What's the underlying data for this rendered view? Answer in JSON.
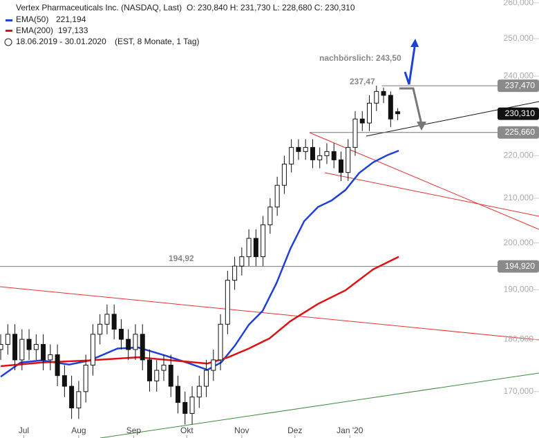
{
  "chart_data": {
    "type": "candlestick",
    "title": "Vertex Pharmaceuticals Inc. (NASDAQ, Last)",
    "quote": "O: 230,840  H: 231,730  L: 228,680  C: 230,310",
    "range_text": "18.06.2019 - 30.01.2020",
    "range_note": "(EST, 8 Monate, 1 Tag)",
    "log_scale": true,
    "ylim": [
      161600,
      260800
    ],
    "xlim": [
      -0.4,
      303.7
    ],
    "yticks": [
      {
        "value": 260000,
        "label": "260,000"
      },
      {
        "value": 250000,
        "label": "250,000"
      },
      {
        "value": 240000,
        "label": "240,000"
      },
      {
        "value": 230000,
        "label": "230,000"
      },
      {
        "value": 220000,
        "label": "220,000"
      },
      {
        "value": 210000,
        "label": "210,000"
      },
      {
        "value": 200000,
        "label": "200,000"
      },
      {
        "value": 190000,
        "label": "190,000"
      },
      {
        "value": 180000,
        "label": "180,000"
      },
      {
        "value": 170000,
        "label": "170,000"
      }
    ],
    "xticks": [
      {
        "value": 13,
        "label": "Jul"
      },
      {
        "value": 44,
        "label": "Aug"
      },
      {
        "value": 75,
        "label": "Sep"
      },
      {
        "value": 105,
        "label": "Okt"
      },
      {
        "value": 136,
        "label": "Nov"
      },
      {
        "value": 166,
        "label": "Dez"
      },
      {
        "value": 197,
        "label": "Jan '20"
      }
    ],
    "candles": {
      "x": [
        0,
        4,
        8,
        12,
        16,
        20,
        24,
        28,
        32,
        36,
        40,
        44,
        48,
        52,
        56,
        60,
        64,
        68,
        72,
        76,
        80,
        84,
        88,
        92,
        96,
        100,
        104,
        108,
        112,
        116,
        120,
        124,
        128,
        132,
        136,
        140,
        144,
        148,
        152,
        156,
        160,
        164,
        168,
        172,
        176,
        180,
        184,
        188,
        192,
        196,
        200,
        204,
        208,
        212,
        216,
        220,
        224
      ],
      "open": [
        178000,
        179000,
        181000,
        176000,
        180000,
        178000,
        179000,
        176000,
        177000,
        173000,
        171000,
        167000,
        170000,
        175000,
        181000,
        183000,
        185000,
        182000,
        180000,
        178000,
        181000,
        176000,
        172000,
        174000,
        175000,
        171000,
        168000,
        166000,
        169000,
        171000,
        174000,
        176000,
        183000,
        192000,
        195000,
        197000,
        201000,
        197000,
        204000,
        208000,
        213000,
        218000,
        222000,
        221000,
        222000,
        219000,
        220000,
        221000,
        219000,
        216000,
        222000,
        229000,
        228000,
        233000,
        236000,
        235000,
        230840
      ],
      "high": [
        181000,
        183000,
        183000,
        182000,
        182000,
        181000,
        181000,
        179000,
        179000,
        175000,
        173000,
        172000,
        177000,
        183000,
        185000,
        187000,
        187000,
        184000,
        182000,
        183000,
        183000,
        178000,
        176000,
        177000,
        177000,
        173000,
        170000,
        171000,
        173000,
        176000,
        178000,
        185000,
        194000,
        197000,
        199000,
        203000,
        203000,
        206000,
        210000,
        215000,
        220000,
        224000,
        224000,
        224000,
        224000,
        222000,
        223000,
        223000,
        221000,
        224000,
        231000,
        231000,
        235000,
        237470,
        237000,
        236000,
        231730
      ],
      "low": [
        176000,
        177000,
        174000,
        174000,
        176000,
        176000,
        174000,
        174000,
        171000,
        169000,
        165000,
        165000,
        168000,
        173000,
        179000,
        181000,
        180000,
        178000,
        176000,
        176000,
        174000,
        170000,
        170000,
        172000,
        169000,
        166000,
        164000,
        164000,
        167000,
        169000,
        172000,
        174000,
        181000,
        190000,
        193000,
        195000,
        195000,
        195000,
        202000,
        206000,
        211000,
        216000,
        219000,
        219000,
        217000,
        217000,
        218000,
        217000,
        214000,
        214000,
        220000,
        226000,
        226000,
        231000,
        233000,
        227000,
        228680
      ],
      "close": [
        179000,
        181000,
        176000,
        180000,
        178000,
        179000,
        176000,
        177000,
        173000,
        171000,
        167000,
        170000,
        175000,
        181000,
        183000,
        185000,
        182000,
        180000,
        178000,
        181000,
        176000,
        172000,
        174000,
        175000,
        171000,
        168000,
        166000,
        169000,
        171000,
        174000,
        176000,
        183000,
        192000,
        195000,
        197000,
        201000,
        197000,
        204000,
        208000,
        213000,
        218000,
        222000,
        221000,
        222000,
        219000,
        220000,
        221000,
        219000,
        216000,
        222000,
        229000,
        228000,
        233000,
        236000,
        235000,
        229000,
        230310
      ]
    },
    "series": [
      {
        "name": "EMA(50)",
        "last_label": "221,194",
        "color": "#1e3fd8",
        "x": [
          0,
          11.3,
          23,
          38.6,
          50.3,
          65.9,
          77.6,
          93.2,
          104.9,
          116.6,
          124.4,
          132.2,
          140,
          147.8,
          155.6,
          163.4,
          171.2,
          179,
          186.7,
          194.5,
          202.3,
          210.1,
          218,
          224.6
        ],
        "values": [
          172800,
          175500,
          175900,
          175100,
          175900,
          178200,
          178400,
          176800,
          175500,
          174100,
          175500,
          178800,
          182900,
          185700,
          191400,
          198700,
          204800,
          208000,
          209500,
          211900,
          215900,
          218400,
          220100,
          221200
        ]
      },
      {
        "name": "EMA(200)",
        "last_label": "197,133",
        "color": "#e01010",
        "x": [
          0,
          23,
          50.3,
          77.6,
          97,
          116.6,
          128.3,
          140,
          151.7,
          163.4,
          179,
          194.5,
          210.1,
          224.6
        ],
        "values": [
          174800,
          175500,
          175900,
          176500,
          175900,
          175300,
          176500,
          178200,
          180200,
          183600,
          187100,
          189900,
          194300,
          197000
        ]
      }
    ],
    "levels": [
      {
        "value": 237470,
        "label": "237,470",
        "from": 215
      },
      {
        "value": 225660,
        "label": "225,660",
        "from": 174.3
      },
      {
        "value": 194920,
        "label": "194,920",
        "from": -0.4
      }
    ],
    "last_price": {
      "value": 230310,
      "label": "230,310"
    },
    "annotations": [
      "nachbörslich: 243,50",
      "237,47",
      "194,92"
    ]
  }
}
